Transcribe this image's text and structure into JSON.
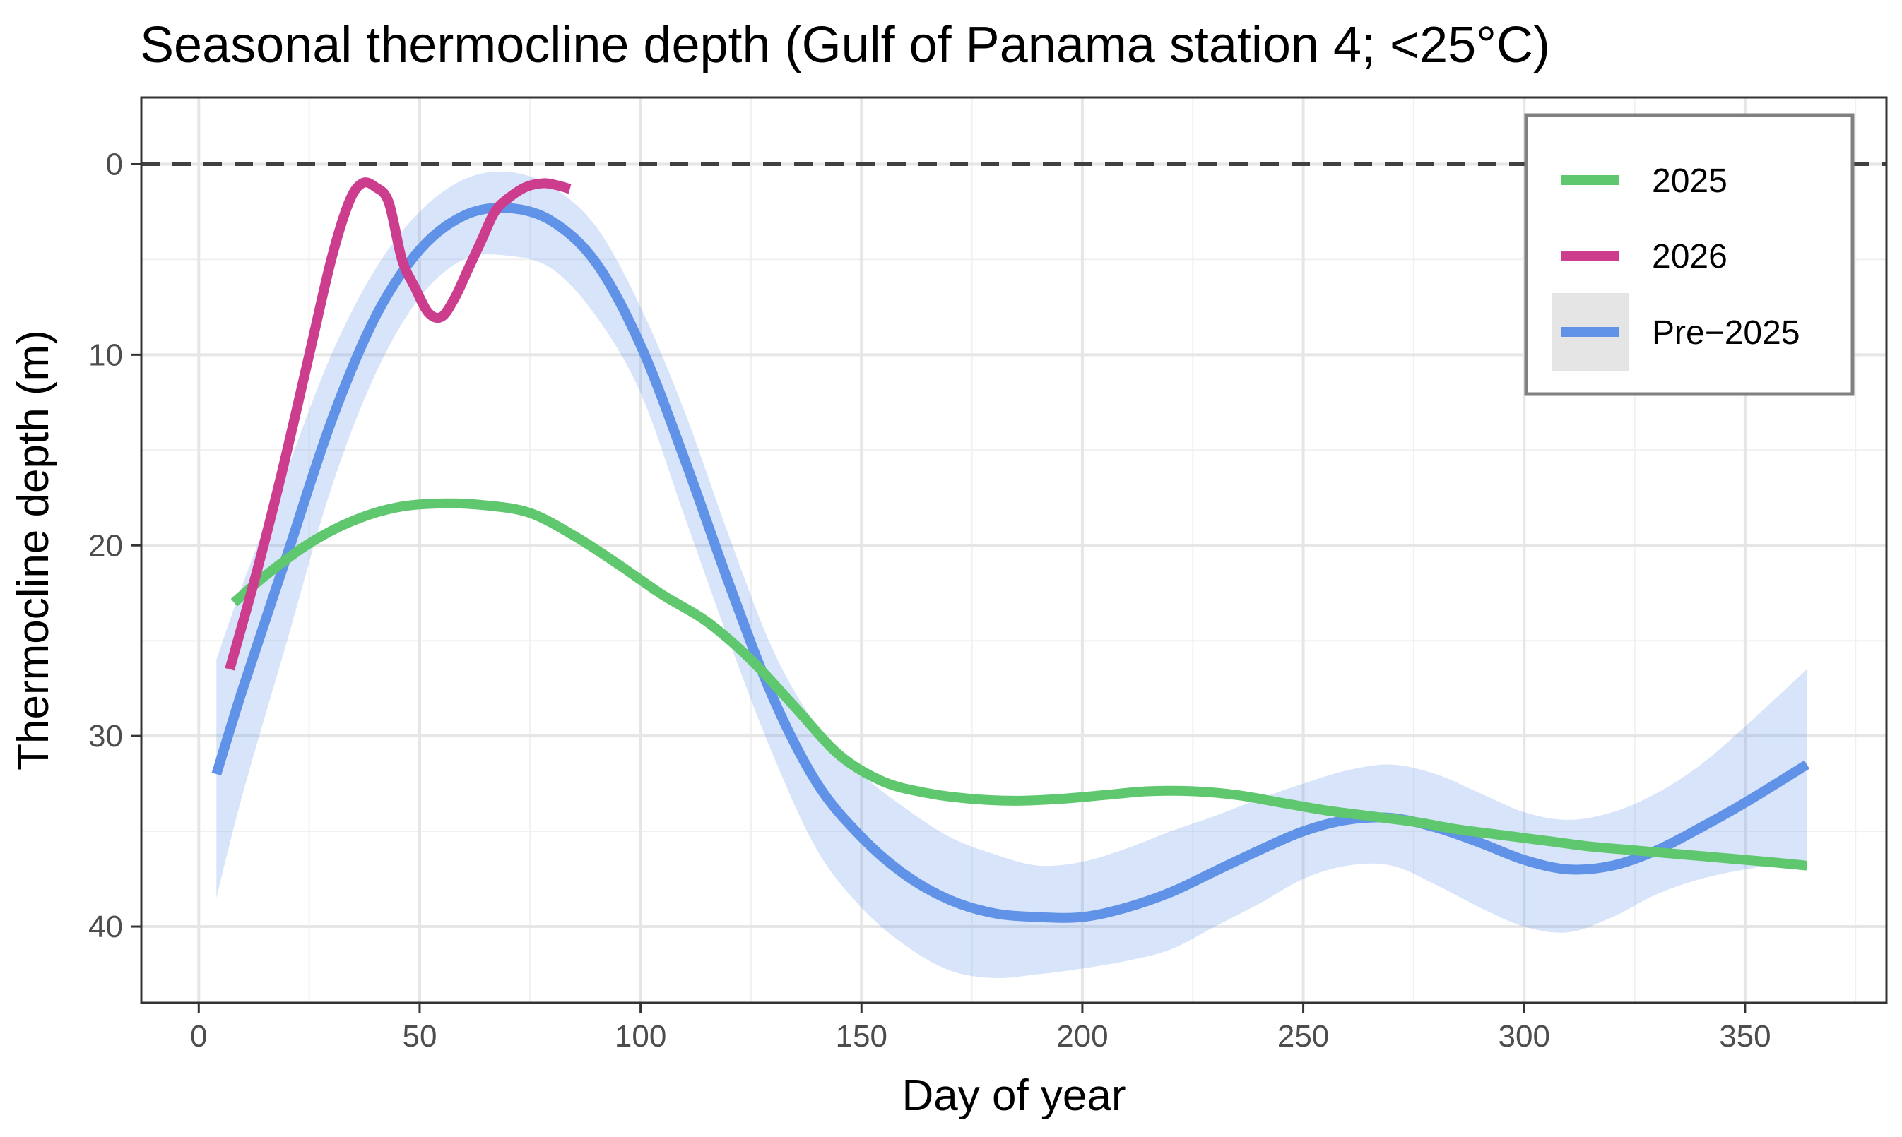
{
  "chart_data": {
    "type": "line",
    "title": "Seasonal thermocline depth (Gulf of Panama station 4; <25°C)",
    "xlabel": "Day of year",
    "ylabel": "Thermocline depth (m)",
    "xlim": [
      -13,
      382
    ],
    "ylim": [
      -3.5,
      44
    ],
    "y_reversed": true,
    "x_ticks": [
      0,
      50,
      100,
      150,
      200,
      250,
      300,
      350
    ],
    "y_ticks": [
      0,
      10,
      20,
      30,
      40
    ],
    "grid": true,
    "reference_line": {
      "y": 0,
      "style": "dashed",
      "color": "#404040"
    },
    "legend": {
      "position": "top-right",
      "entries": [
        {
          "label": "2025",
          "color": "#5fc76e",
          "type": "line"
        },
        {
          "label": "2026",
          "color": "#cc3d8e",
          "type": "line"
        },
        {
          "label": "Pre−2025",
          "color": "#6092e8",
          "type": "line+band"
        }
      ]
    },
    "series": [
      {
        "name": "2025",
        "color": "#5fc76e",
        "x": [
          8,
          15,
          25,
          35,
          45,
          55,
          65,
          75,
          85,
          95,
          105,
          115,
          125,
          135,
          145,
          155,
          165,
          175,
          185,
          195,
          205,
          215,
          225,
          235,
          245,
          255,
          265,
          275,
          285,
          295,
          305,
          315,
          325,
          335,
          345,
          355,
          364
        ],
        "y": [
          23,
          21.6,
          19.9,
          18.7,
          18.0,
          17.8,
          17.9,
          18.3,
          19.5,
          21.0,
          22.6,
          24.0,
          26.0,
          28.5,
          31.0,
          32.4,
          33.0,
          33.3,
          33.4,
          33.3,
          33.1,
          32.9,
          32.9,
          33.1,
          33.5,
          33.9,
          34.2,
          34.5,
          34.9,
          35.2,
          35.5,
          35.8,
          36.0,
          36.2,
          36.4,
          36.6,
          36.8
        ]
      },
      {
        "name": "2026",
        "color": "#cc3d8e",
        "x": [
          7,
          13,
          19,
          25,
          30,
          34,
          37,
          40,
          43,
          46,
          49,
          52,
          55,
          58,
          61,
          64,
          67,
          70,
          74,
          78,
          81,
          84
        ],
        "y": [
          26.5,
          21.5,
          16,
          10,
          5,
          2,
          1,
          1.2,
          2,
          5,
          6.5,
          7.8,
          8,
          7,
          5.5,
          4,
          2.5,
          1.8,
          1.2,
          1,
          1.1,
          1.3
        ]
      },
      {
        "name": "Pre−2025",
        "color": "#6092e8",
        "x": [
          4,
          10,
          20,
          30,
          40,
          50,
          60,
          70,
          80,
          90,
          100,
          110,
          120,
          130,
          140,
          150,
          160,
          170,
          180,
          190,
          200,
          210,
          220,
          230,
          240,
          250,
          260,
          270,
          280,
          290,
          300,
          310,
          320,
          330,
          340,
          350,
          364
        ],
        "y": [
          32,
          27.5,
          20.5,
          13.5,
          8.0,
          4.5,
          2.7,
          2.3,
          3.0,
          5.2,
          9.5,
          15.5,
          22.0,
          28.0,
          32.5,
          35.3,
          37.3,
          38.6,
          39.3,
          39.5,
          39.5,
          39.0,
          38.2,
          37.1,
          36.0,
          35.0,
          34.4,
          34.3,
          34.8,
          35.6,
          36.5,
          37.0,
          36.8,
          36.0,
          34.8,
          33.5,
          31.5
        ],
        "lower": [
          26,
          22,
          16,
          10,
          5.5,
          2.5,
          0.8,
          0.4,
          1.2,
          3.3,
          7.5,
          13.0,
          19.5,
          25.5,
          29.5,
          32.0,
          33.8,
          35.3,
          36.2,
          36.8,
          36.6,
          35.9,
          35.0,
          34.2,
          33.3,
          32.5,
          31.8,
          31.5,
          32.0,
          33.0,
          34.0,
          34.4,
          34.0,
          33.0,
          31.5,
          29.5,
          26.5
        ],
        "upper": [
          38.5,
          33,
          25,
          17,
          11,
          7,
          5.0,
          4.8,
          5.5,
          8.0,
          12.0,
          18.5,
          25.0,
          31.0,
          36.0,
          39.0,
          41.0,
          42.3,
          42.7,
          42.5,
          42.2,
          41.8,
          41.2,
          40.0,
          38.8,
          37.5,
          36.8,
          36.8,
          37.8,
          39.0,
          40.0,
          40.3,
          39.5,
          38.3,
          37.5,
          37.0,
          36.5
        ]
      }
    ]
  }
}
